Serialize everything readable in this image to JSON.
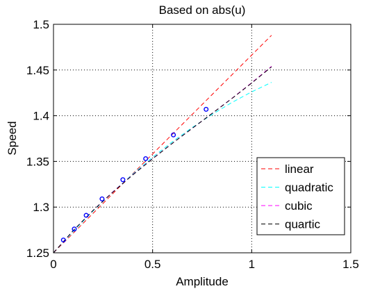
{
  "chart_data": {
    "type": "line",
    "title": "Based on abs(u)",
    "xlabel": "Amplitude",
    "ylabel": "Speed",
    "xlim": [
      0,
      1.5
    ],
    "ylim": [
      1.25,
      1.5
    ],
    "xticks": [
      0,
      0.5,
      1,
      1.5
    ],
    "xtick_labels": [
      "0",
      "0.5",
      "1",
      "1.5"
    ],
    "yticks": [
      1.25,
      1.3,
      1.35,
      1.4,
      1.45,
      1.5
    ],
    "ytick_labels": [
      "1.25",
      "1.3",
      "1.35",
      "1.4",
      "1.45",
      "1.5"
    ],
    "grid": true,
    "legend_position": "lower-right",
    "points": {
      "marker": "circle",
      "color": "#0000ff",
      "x": [
        0.05,
        0.105,
        0.165,
        0.245,
        0.35,
        0.465,
        0.605,
        0.77
      ],
      "y": [
        1.264,
        1.276,
        1.291,
        1.309,
        1.33,
        1.353,
        1.379,
        1.407
      ]
    },
    "series": [
      {
        "name": "linear",
        "color": "#ff0000",
        "x": [
          0,
          1.1
        ],
        "y": [
          1.25,
          1.488
        ]
      },
      {
        "name": "quadratic",
        "color": "#00ffff",
        "x": [
          0,
          0.1,
          0.2,
          0.3,
          0.4,
          0.5,
          0.6,
          0.7,
          0.8,
          0.9,
          1.0,
          1.1
        ],
        "y": [
          1.25,
          1.2735,
          1.2958,
          1.3167,
          1.3362,
          1.3545,
          1.3715,
          1.3871,
          1.4014,
          1.4144,
          1.4261,
          1.4365
        ]
      },
      {
        "name": "cubic",
        "color": "#ff00ff",
        "x": [
          0,
          0.1,
          0.2,
          0.3,
          0.4,
          0.5,
          0.6,
          0.7,
          0.8,
          0.9,
          1.0,
          1.1
        ],
        "y": [
          1.25,
          1.2744,
          1.2965,
          1.3168,
          1.3355,
          1.3531,
          1.3699,
          1.3862,
          1.4025,
          1.419,
          1.4361,
          1.454
        ]
      },
      {
        "name": "quartic",
        "color": "#000000",
        "x": [
          0,
          0.1,
          0.2,
          0.3,
          0.4,
          0.5,
          0.6,
          0.7,
          0.8,
          0.9,
          1.0,
          1.1
        ],
        "y": [
          1.25,
          1.2745,
          1.2964,
          1.3165,
          1.3352,
          1.3529,
          1.3698,
          1.3862,
          1.4024,
          1.4188,
          1.4357,
          1.4535
        ]
      }
    ]
  }
}
